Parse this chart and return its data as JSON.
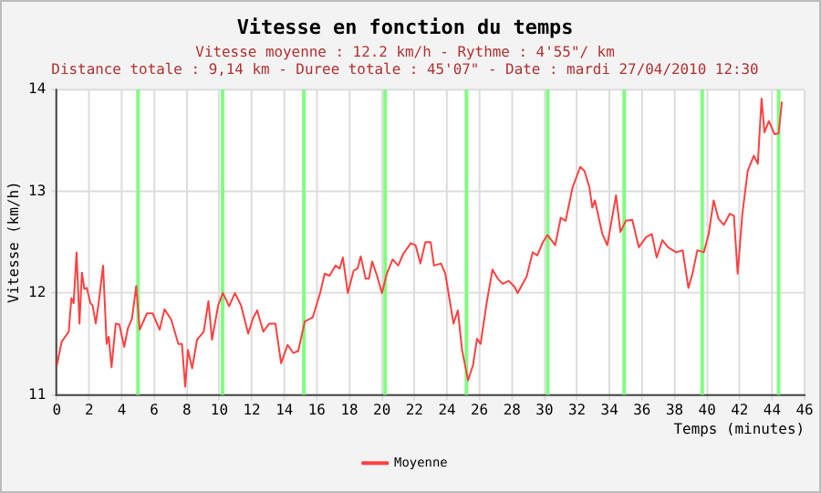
{
  "chart_data": {
    "type": "line",
    "title": "Vitesse en fonction du temps",
    "subtitle": "Vitesse moyenne : 12.2 km/h - Rythme : 4'55\"/ km\nDistance totale : 9,14 km - Duree totale : 45'07\" - Date : mardi 27/04/2010 12:30",
    "xlabel": "Temps (minutes)",
    "ylabel": "Vitesse (km/h)",
    "xlim": [
      0,
      46
    ],
    "xticks": [
      0,
      2,
      4,
      6,
      8,
      10,
      12,
      14,
      16,
      18,
      20,
      22,
      24,
      26,
      28,
      30,
      32,
      34,
      36,
      38,
      40,
      42,
      44,
      46
    ],
    "ylim": [
      11,
      14
    ],
    "yticks": [
      11,
      12,
      13,
      14
    ],
    "grid": true,
    "legend": "bottom",
    "marker": "none",
    "line_style": "solid",
    "ref_lines": [
      {
        "axis": "x",
        "value": 5.0,
        "color": "#80ff80"
      },
      {
        "axis": "x",
        "value": 10.2,
        "color": "#80ff80"
      },
      {
        "axis": "x",
        "value": 15.2,
        "color": "#80ff80"
      },
      {
        "axis": "x",
        "value": 20.2,
        "color": "#80ff80"
      },
      {
        "axis": "x",
        "value": 25.2,
        "color": "#80ff80"
      },
      {
        "axis": "x",
        "value": 30.2,
        "color": "#80ff80"
      },
      {
        "axis": "x",
        "value": 34.9,
        "color": "#80ff80"
      },
      {
        "axis": "x",
        "value": 39.7,
        "color": "#80ff80"
      },
      {
        "axis": "x",
        "value": 44.4,
        "color": "#80ff80"
      }
    ],
    "series": [
      {
        "name": "Moyenne",
        "color": "#ff4040",
        "x": [
          0,
          0.3,
          0.74,
          0.9,
          1.04,
          1.22,
          1.4,
          1.55,
          1.7,
          1.85,
          2.07,
          2.2,
          2.4,
          2.6,
          2.85,
          3.07,
          3.2,
          3.37,
          3.63,
          3.85,
          4.15,
          4.37,
          4.63,
          4.89,
          5.1,
          5.55,
          5.9,
          6.33,
          6.63,
          7.04,
          7.48,
          7.7,
          7.9,
          8.07,
          8.33,
          8.63,
          9.04,
          9.33,
          9.55,
          9.93,
          10.22,
          10.6,
          10.96,
          11.33,
          11.78,
          12.07,
          12.33,
          12.7,
          13.07,
          13.45,
          13.8,
          14.2,
          14.55,
          14.85,
          15.26,
          15.74,
          16.2,
          16.48,
          16.78,
          17.15,
          17.4,
          17.6,
          17.9,
          18.26,
          18.5,
          18.7,
          19.0,
          19.2,
          19.4,
          19.7,
          20.0,
          20.3,
          20.66,
          21.0,
          21.33,
          21.78,
          22.07,
          22.37,
          22.67,
          23.0,
          23.2,
          23.64,
          23.9,
          24.3,
          24.4,
          24.67,
          24.93,
          25.3,
          25.6,
          25.85,
          26.07,
          26.45,
          26.8,
          27.13,
          27.43,
          27.8,
          28.16,
          28.35,
          28.65,
          28.9,
          29.27,
          29.56,
          29.9,
          30.18,
          30.66,
          31.0,
          31.3,
          31.73,
          32.2,
          32.46,
          32.76,
          32.94,
          33.1,
          33.56,
          33.86,
          34.4,
          34.67,
          35.0,
          35.4,
          35.8,
          36.25,
          36.6,
          36.9,
          37.25,
          37.6,
          38.1,
          38.5,
          38.85,
          39.1,
          39.4,
          39.8,
          40.1,
          40.4,
          40.7,
          41.03,
          41.4,
          41.65,
          41.88,
          42.17,
          42.5,
          42.87,
          43.12,
          43.35,
          43.53,
          43.8,
          44.15,
          44.4,
          44.6
        ],
        "values": [
          11.28,
          11.52,
          11.62,
          11.95,
          11.9,
          12.4,
          11.7,
          12.2,
          12.04,
          12.05,
          11.9,
          11.88,
          11.7,
          11.93,
          12.27,
          11.5,
          11.57,
          11.27,
          11.7,
          11.69,
          11.47,
          11.65,
          11.75,
          12.07,
          11.64,
          11.8,
          11.8,
          11.64,
          11.84,
          11.74,
          11.5,
          11.5,
          11.08,
          11.44,
          11.26,
          11.54,
          11.62,
          11.92,
          11.54,
          11.88,
          12.0,
          11.87,
          12.0,
          11.88,
          11.6,
          11.75,
          11.83,
          11.62,
          11.7,
          11.7,
          11.31,
          11.49,
          11.41,
          11.43,
          11.72,
          11.76,
          12.0,
          12.19,
          12.17,
          12.27,
          12.24,
          12.35,
          12.0,
          12.22,
          12.24,
          12.36,
          12.14,
          12.14,
          12.31,
          12.17,
          12.0,
          12.19,
          12.33,
          12.27,
          12.39,
          12.49,
          12.47,
          12.29,
          12.5,
          12.5,
          12.27,
          12.29,
          12.19,
          11.8,
          11.7,
          11.83,
          11.44,
          11.14,
          11.29,
          11.55,
          11.5,
          11.91,
          12.23,
          12.14,
          12.09,
          12.12,
          12.06,
          12.0,
          12.09,
          12.16,
          12.4,
          12.37,
          12.5,
          12.57,
          12.47,
          12.74,
          12.71,
          13.04,
          13.24,
          13.2,
          13.04,
          12.84,
          12.91,
          12.58,
          12.47,
          12.96,
          12.6,
          12.71,
          12.72,
          12.45,
          12.55,
          12.58,
          12.35,
          12.52,
          12.45,
          12.4,
          12.42,
          12.05,
          12.19,
          12.42,
          12.4,
          12.58,
          12.91,
          12.73,
          12.67,
          12.78,
          12.76,
          12.19,
          12.78,
          13.2,
          13.35,
          13.27,
          13.91,
          13.58,
          13.69,
          13.56,
          13.57,
          13.88
        ]
      }
    ]
  }
}
